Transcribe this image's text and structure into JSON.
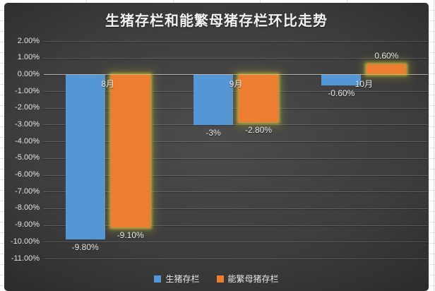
{
  "chart_data": {
    "type": "bar",
    "title": "生猪存栏和能繁母猪存栏环比走势",
    "categories": [
      "8月",
      "9月",
      "10月"
    ],
    "series": [
      {
        "name": "生猪存栏",
        "color": "#5596d7",
        "glow": false,
        "values": [
          -9.8,
          -3,
          -0.6
        ],
        "labels": [
          "-9.80%",
          "-3%",
          "-0.60%"
        ]
      },
      {
        "name": "能繁母猪存栏",
        "color": "#ed7d31",
        "glow": true,
        "values": [
          -9.1,
          -2.8,
          0.6
        ],
        "labels": [
          "-9.10%",
          "-2.80%",
          "0.60%"
        ]
      }
    ],
    "y_axis": {
      "min": -11,
      "max": 2,
      "step": 1,
      "ticks": [
        "2.00%",
        "1.00%",
        "0.00%",
        "-1.00%",
        "-2.00%",
        "-3.00%",
        "-4.00%",
        "-5.00%",
        "-6.00%",
        "-7.00%",
        "-8.00%",
        "-9.00%",
        "-10.00%",
        "-11.00%"
      ]
    },
    "legend_position": "bottom",
    "grid": true,
    "background_color": "#3d3d3d",
    "text_color": "#e9e9e9"
  }
}
